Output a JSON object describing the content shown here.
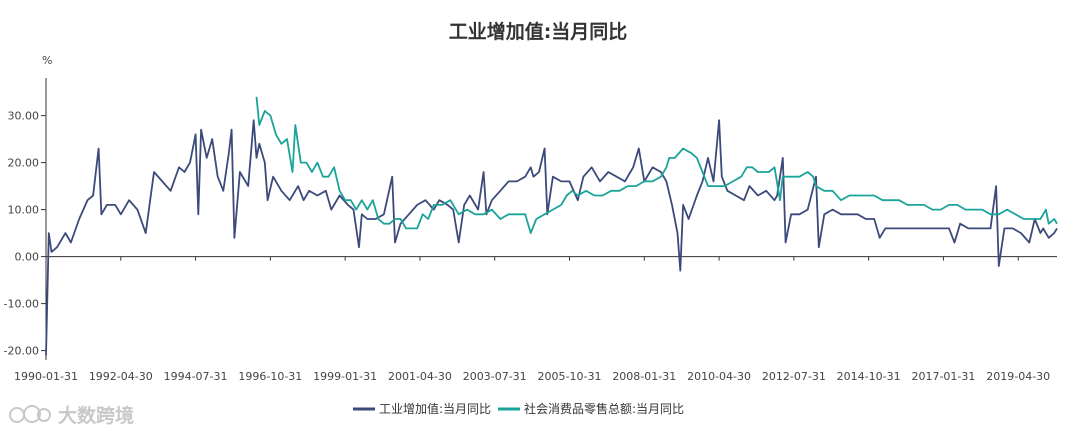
{
  "chart_data": {
    "type": "line",
    "title": "工业增加值:当月同比",
    "ylabel": "%",
    "ylim": [
      -22,
      38
    ],
    "yticks": [
      -20,
      -10,
      0,
      10,
      20,
      30
    ],
    "ytick_labels": [
      "-20.00",
      "-10.00",
      "0.00",
      "10.00",
      "20.00",
      "30.00"
    ],
    "xlim": [
      "1990-01",
      "2020-06"
    ],
    "xticks": [
      "1990-01-31",
      "1992-04-30",
      "1994-07-31",
      "1996-10-31",
      "1999-01-31",
      "2001-04-30",
      "2003-07-31",
      "2005-10-31",
      "2008-01-31",
      "2010-04-30",
      "2012-07-31",
      "2014-10-31",
      "2017-01-31",
      "2019-04-30"
    ],
    "grid": false,
    "legend_position": "bottom",
    "series": [
      {
        "name": "工业增加值:当月同比",
        "color": "#3b4a7a",
        "points": [
          [
            "1990-01",
            -21
          ],
          [
            "1990-02",
            5
          ],
          [
            "1990-03",
            1
          ],
          [
            "1990-05",
            2
          ],
          [
            "1990-08",
            5
          ],
          [
            "1990-10",
            3
          ],
          [
            "1991-01",
            8
          ],
          [
            "1991-04",
            12
          ],
          [
            "1991-06",
            13
          ],
          [
            "1991-08",
            23
          ],
          [
            "1991-09",
            9
          ],
          [
            "1991-11",
            11
          ],
          [
            "1992-02",
            11
          ],
          [
            "1992-04",
            9
          ],
          [
            "1992-07",
            12
          ],
          [
            "1992-10",
            10
          ],
          [
            "1993-01",
            5
          ],
          [
            "1993-04",
            18
          ],
          [
            "1993-07",
            16
          ],
          [
            "1993-10",
            14
          ],
          [
            "1994-01",
            19
          ],
          [
            "1994-03",
            18
          ],
          [
            "1994-05",
            20
          ],
          [
            "1994-07",
            26
          ],
          [
            "1994-08",
            9
          ],
          [
            "1994-09",
            27
          ],
          [
            "1994-11",
            21
          ],
          [
            "1995-01",
            25
          ],
          [
            "1995-03",
            17
          ],
          [
            "1995-05",
            14
          ],
          [
            "1995-07",
            22
          ],
          [
            "1995-08",
            27
          ],
          [
            "1995-09",
            4
          ],
          [
            "1995-11",
            18
          ],
          [
            "1996-02",
            15
          ],
          [
            "1996-04",
            29
          ],
          [
            "1996-05",
            21
          ],
          [
            "1996-06",
            24
          ],
          [
            "1996-08",
            20
          ],
          [
            "1996-09",
            12
          ],
          [
            "1996-11",
            17
          ],
          [
            "1997-02",
            14
          ],
          [
            "1997-05",
            12
          ],
          [
            "1997-08",
            15
          ],
          [
            "1997-10",
            12
          ],
          [
            "1997-12",
            14
          ],
          [
            "1998-03",
            13
          ],
          [
            "1998-06",
            14
          ],
          [
            "1998-08",
            10
          ],
          [
            "1998-11",
            13
          ],
          [
            "1999-02",
            11
          ],
          [
            "1999-04",
            10
          ],
          [
            "1999-06",
            2
          ],
          [
            "1999-07",
            9
          ],
          [
            "1999-09",
            8
          ],
          [
            "1999-12",
            8
          ],
          [
            "2000-03",
            9
          ],
          [
            "2000-06",
            17
          ],
          [
            "2000-07",
            3
          ],
          [
            "2000-09",
            7
          ],
          [
            "2000-12",
            9
          ],
          [
            "2001-03",
            11
          ],
          [
            "2001-06",
            12
          ],
          [
            "2001-09",
            10
          ],
          [
            "2001-11",
            12
          ],
          [
            "2002-02",
            11
          ],
          [
            "2002-04",
            10
          ],
          [
            "2002-06",
            3
          ],
          [
            "2002-08",
            11
          ],
          [
            "2002-10",
            13
          ],
          [
            "2003-01",
            10
          ],
          [
            "2003-03",
            18
          ],
          [
            "2003-04",
            9
          ],
          [
            "2003-06",
            12
          ],
          [
            "2003-09",
            14
          ],
          [
            "2003-12",
            16
          ],
          [
            "2004-03",
            16
          ],
          [
            "2004-06",
            17
          ],
          [
            "2004-08",
            19
          ],
          [
            "2004-09",
            17
          ],
          [
            "2004-11",
            18
          ],
          [
            "2005-01",
            23
          ],
          [
            "2005-02",
            9
          ],
          [
            "2005-04",
            17
          ],
          [
            "2005-07",
            16
          ],
          [
            "2005-10",
            16
          ],
          [
            "2006-01",
            12
          ],
          [
            "2006-03",
            17
          ],
          [
            "2006-06",
            19
          ],
          [
            "2006-09",
            16
          ],
          [
            "2006-12",
            18
          ],
          [
            "2007-03",
            17
          ],
          [
            "2007-06",
            16
          ],
          [
            "2007-08",
            18
          ],
          [
            "2007-09",
            19
          ],
          [
            "2007-11",
            23
          ],
          [
            "2008-01",
            16
          ],
          [
            "2008-04",
            19
          ],
          [
            "2008-07",
            18
          ],
          [
            "2008-09",
            16
          ],
          [
            "2008-11",
            11
          ],
          [
            "2009-01",
            5
          ],
          [
            "2009-02",
            -3
          ],
          [
            "2009-03",
            11
          ],
          [
            "2009-05",
            8
          ],
          [
            "2009-08",
            13
          ],
          [
            "2009-10",
            16
          ],
          [
            "2009-12",
            21
          ],
          [
            "2010-02",
            16
          ],
          [
            "2010-04",
            29
          ],
          [
            "2010-05",
            17
          ],
          [
            "2010-07",
            14
          ],
          [
            "2010-10",
            13
          ],
          [
            "2011-01",
            12
          ],
          [
            "2011-03",
            15
          ],
          [
            "2011-06",
            13
          ],
          [
            "2011-09",
            14
          ],
          [
            "2011-12",
            12
          ],
          [
            "2012-01",
            13
          ],
          [
            "2012-03",
            21
          ],
          [
            "2012-04",
            3
          ],
          [
            "2012-06",
            9
          ],
          [
            "2012-09",
            9
          ],
          [
            "2012-12",
            10
          ],
          [
            "2013-03",
            17
          ],
          [
            "2013-04",
            2
          ],
          [
            "2013-06",
            9
          ],
          [
            "2013-09",
            10
          ],
          [
            "2013-12",
            9
          ],
          [
            "2014-03",
            9
          ],
          [
            "2014-06",
            9
          ],
          [
            "2014-09",
            8
          ],
          [
            "2014-12",
            8
          ],
          [
            "2015-02",
            4
          ],
          [
            "2015-04",
            6
          ],
          [
            "2015-07",
            6
          ],
          [
            "2015-10",
            6
          ],
          [
            "2016-01",
            6
          ],
          [
            "2016-03",
            6
          ],
          [
            "2016-06",
            6
          ],
          [
            "2016-09",
            6
          ],
          [
            "2016-12",
            6
          ],
          [
            "2017-03",
            6
          ],
          [
            "2017-05",
            3
          ],
          [
            "2017-07",
            7
          ],
          [
            "2017-10",
            6
          ],
          [
            "2018-01",
            6
          ],
          [
            "2018-03",
            6
          ],
          [
            "2018-06",
            6
          ],
          [
            "2018-08",
            15
          ],
          [
            "2018-09",
            -2
          ],
          [
            "2018-11",
            6
          ],
          [
            "2019-02",
            6
          ],
          [
            "2019-05",
            5
          ],
          [
            "2019-08",
            3
          ],
          [
            "2019-10",
            8
          ],
          [
            "2019-12",
            5
          ],
          [
            "2020-01",
            6
          ],
          [
            "2020-03",
            4
          ],
          [
            "2020-05",
            5
          ],
          [
            "2020-06",
            6
          ]
        ]
      },
      {
        "name": "社会消费品零售总额:当月同比",
        "color": "#1aa39a",
        "points": [
          [
            "1996-05",
            34
          ],
          [
            "1996-06",
            28
          ],
          [
            "1996-08",
            31
          ],
          [
            "1996-10",
            30
          ],
          [
            "1996-12",
            26
          ],
          [
            "1997-02",
            24
          ],
          [
            "1997-04",
            25
          ],
          [
            "1997-06",
            18
          ],
          [
            "1997-07",
            28
          ],
          [
            "1997-09",
            20
          ],
          [
            "1997-11",
            20
          ],
          [
            "1998-01",
            18
          ],
          [
            "1998-03",
            20
          ],
          [
            "1998-05",
            17
          ],
          [
            "1998-07",
            17
          ],
          [
            "1998-09",
            19
          ],
          [
            "1998-11",
            14
          ],
          [
            "1999-01",
            12
          ],
          [
            "1999-03",
            12
          ],
          [
            "1999-05",
            10
          ],
          [
            "1999-07",
            12
          ],
          [
            "1999-09",
            10
          ],
          [
            "1999-11",
            12
          ],
          [
            "2000-01",
            8
          ],
          [
            "2000-03",
            7
          ],
          [
            "2000-05",
            7
          ],
          [
            "2000-07",
            8
          ],
          [
            "2000-09",
            8
          ],
          [
            "2000-11",
            6
          ],
          [
            "2001-01",
            6
          ],
          [
            "2001-03",
            6
          ],
          [
            "2001-05",
            9
          ],
          [
            "2001-07",
            8
          ],
          [
            "2001-09",
            11
          ],
          [
            "2001-12",
            11
          ],
          [
            "2002-03",
            12
          ],
          [
            "2002-06",
            9
          ],
          [
            "2002-09",
            10
          ],
          [
            "2002-12",
            9
          ],
          [
            "2003-03",
            9
          ],
          [
            "2003-06",
            10
          ],
          [
            "2003-09",
            8
          ],
          [
            "2003-12",
            9
          ],
          [
            "2004-03",
            9
          ],
          [
            "2004-06",
            9
          ],
          [
            "2004-08",
            5
          ],
          [
            "2004-10",
            8
          ],
          [
            "2005-01",
            9
          ],
          [
            "2005-04",
            10
          ],
          [
            "2005-07",
            11
          ],
          [
            "2005-09",
            13
          ],
          [
            "2005-11",
            14
          ],
          [
            "2006-01",
            13
          ],
          [
            "2006-04",
            14
          ],
          [
            "2006-07",
            13
          ],
          [
            "2006-10",
            13
          ],
          [
            "2007-01",
            14
          ],
          [
            "2007-04",
            14
          ],
          [
            "2007-07",
            15
          ],
          [
            "2007-10",
            15
          ],
          [
            "2008-01",
            16
          ],
          [
            "2008-04",
            16
          ],
          [
            "2008-07",
            17
          ],
          [
            "2008-09",
            19
          ],
          [
            "2008-10",
            21
          ],
          [
            "2008-12",
            21
          ],
          [
            "2009-03",
            23
          ],
          [
            "2009-06",
            22
          ],
          [
            "2009-08",
            21
          ],
          [
            "2009-10",
            18
          ],
          [
            "2009-12",
            15
          ],
          [
            "2010-03",
            15
          ],
          [
            "2010-06",
            15
          ],
          [
            "2010-09",
            16
          ],
          [
            "2010-12",
            17
          ],
          [
            "2011-02",
            19
          ],
          [
            "2011-04",
            19
          ],
          [
            "2011-06",
            18
          ],
          [
            "2011-08",
            18
          ],
          [
            "2011-10",
            18
          ],
          [
            "2011-12",
            19
          ],
          [
            "2012-02",
            12
          ],
          [
            "2012-03",
            17
          ],
          [
            "2012-06",
            17
          ],
          [
            "2012-09",
            17
          ],
          [
            "2012-12",
            18
          ],
          [
            "2013-02",
            17
          ],
          [
            "2013-03",
            15
          ],
          [
            "2013-06",
            14
          ],
          [
            "2013-09",
            14
          ],
          [
            "2013-12",
            12
          ],
          [
            "2014-03",
            13
          ],
          [
            "2014-06",
            13
          ],
          [
            "2014-09",
            13
          ],
          [
            "2014-12",
            13
          ],
          [
            "2015-03",
            12
          ],
          [
            "2015-06",
            12
          ],
          [
            "2015-09",
            12
          ],
          [
            "2015-12",
            11
          ],
          [
            "2016-03",
            11
          ],
          [
            "2016-06",
            11
          ],
          [
            "2016-09",
            10
          ],
          [
            "2016-12",
            10
          ],
          [
            "2017-03",
            11
          ],
          [
            "2017-06",
            11
          ],
          [
            "2017-09",
            10
          ],
          [
            "2017-12",
            10
          ],
          [
            "2018-03",
            10
          ],
          [
            "2018-06",
            9
          ],
          [
            "2018-09",
            9
          ],
          [
            "2018-12",
            10
          ],
          [
            "2019-03",
            9
          ],
          [
            "2019-06",
            8
          ],
          [
            "2019-09",
            8
          ],
          [
            "2019-12",
            8
          ],
          [
            "2020-01",
            9
          ],
          [
            "2020-02",
            10
          ],
          [
            "2020-03",
            7
          ],
          [
            "2020-05",
            8
          ],
          [
            "2020-06",
            7
          ]
        ]
      }
    ]
  },
  "watermark": {
    "text": "大数跨境"
  }
}
